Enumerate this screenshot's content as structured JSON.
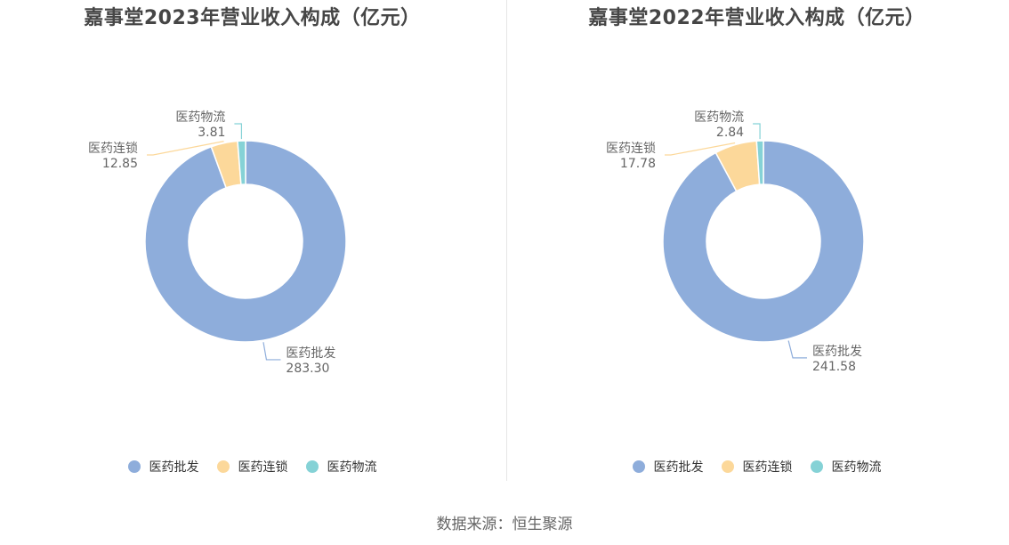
{
  "source": "数据来源：恒生聚源",
  "colors": {
    "医药批发": "#8eaddb",
    "医药连锁": "#fcd89a",
    "医药物流": "#85d2d6"
  },
  "chart_data": [
    {
      "type": "pie",
      "variant": "donut",
      "title": "嘉事堂2023年营业收入构成（亿元）",
      "categories": [
        "医药批发",
        "医药连锁",
        "医药物流"
      ],
      "values": [
        283.3,
        12.85,
        3.81
      ],
      "value_labels": [
        "283.30",
        "12.85",
        "3.81"
      ],
      "legend": {
        "position": "bottom",
        "items": [
          "医药批发",
          "医药连锁",
          "医药物流"
        ]
      }
    },
    {
      "type": "pie",
      "variant": "donut",
      "title": "嘉事堂2022年营业收入构成（亿元）",
      "categories": [
        "医药批发",
        "医药连锁",
        "医药物流"
      ],
      "values": [
        241.58,
        17.78,
        2.84
      ],
      "value_labels": [
        "241.58",
        "17.78",
        "2.84"
      ],
      "legend": {
        "position": "bottom",
        "items": [
          "医药批发",
          "医药连锁",
          "医药物流"
        ]
      }
    }
  ]
}
